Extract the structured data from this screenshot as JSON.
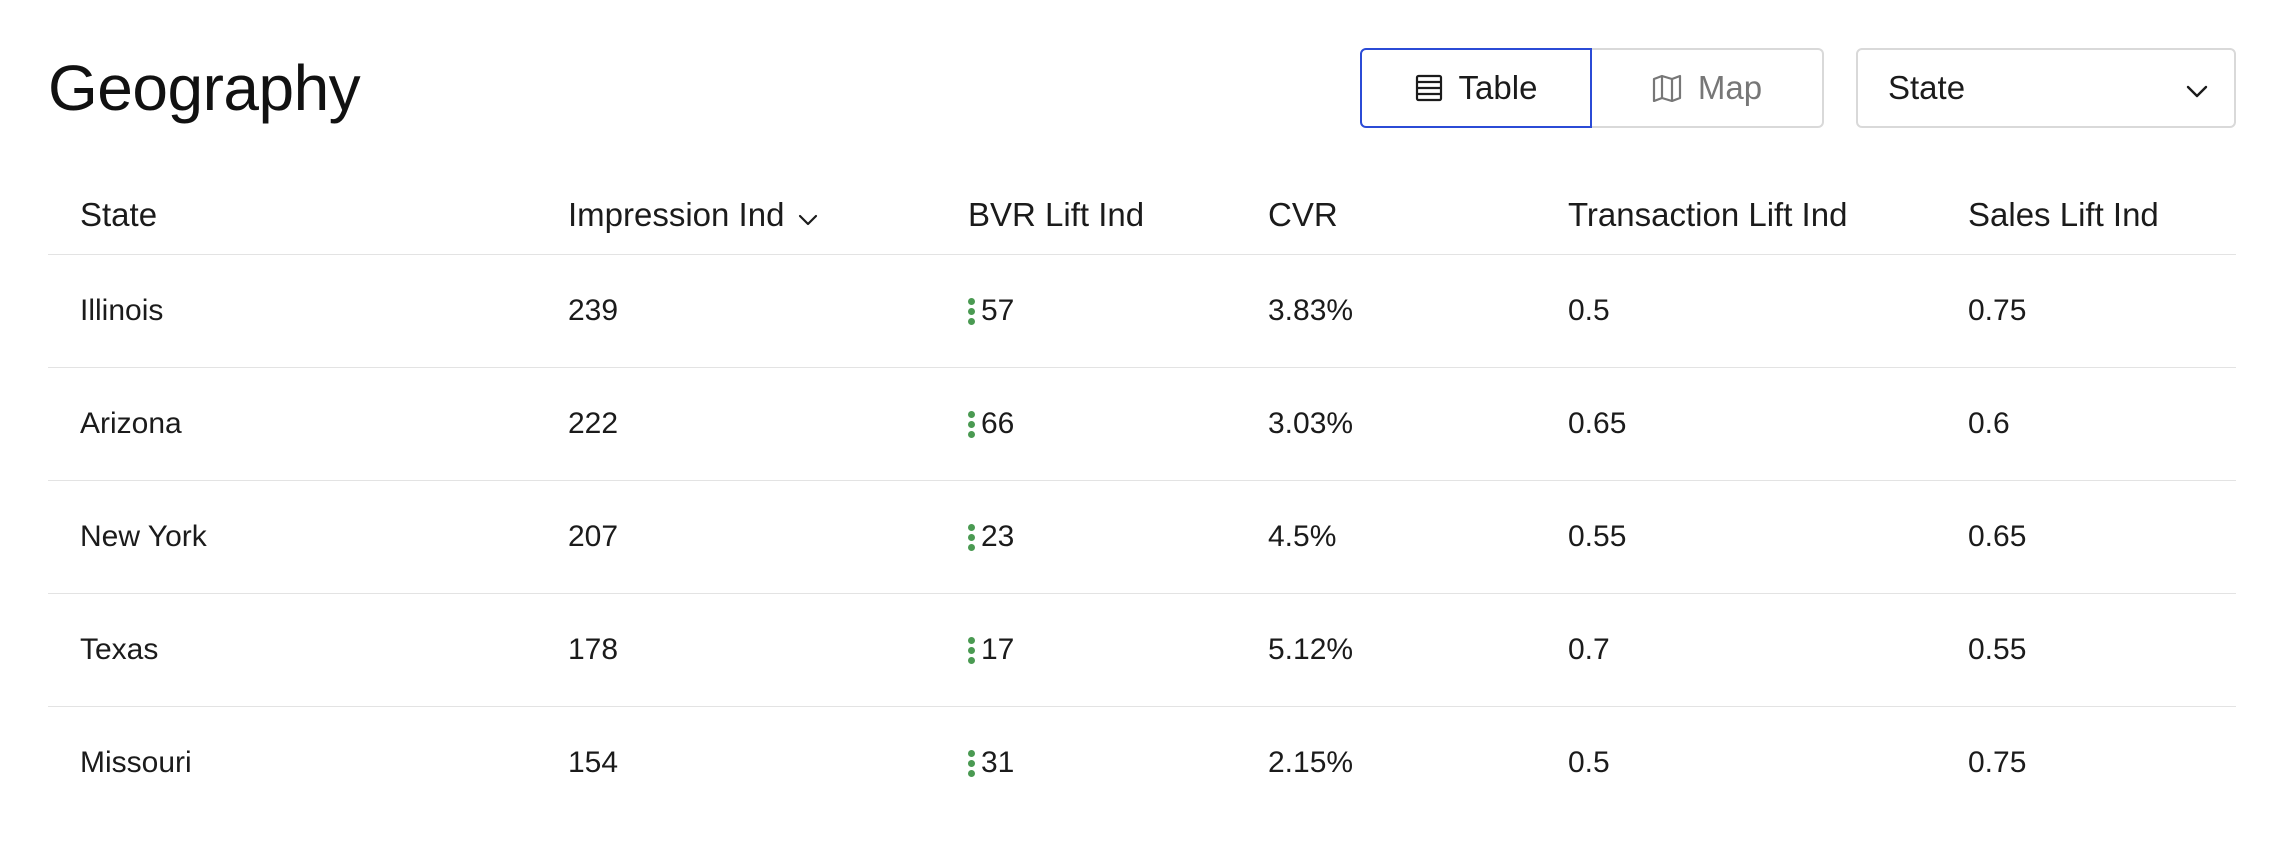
{
  "page": {
    "title": "Geography"
  },
  "view_toggle": {
    "table_label": "Table",
    "map_label": "Map",
    "active": "Table"
  },
  "dimension_select": {
    "value": "State"
  },
  "colors": {
    "accent": "#2b4bd6",
    "indicator": "#4a9a52",
    "border": "#d9d9d9",
    "divider": "#e3e3e3"
  },
  "table": {
    "columns": [
      {
        "label": "State"
      },
      {
        "label": "Impression Ind",
        "sorted": "desc"
      },
      {
        "label": "BVR Lift Ind"
      },
      {
        "label": "CVR"
      },
      {
        "label": "Transaction Lift Ind"
      },
      {
        "label": "Sales Lift Ind"
      }
    ],
    "rows": [
      {
        "state": "Illinois",
        "impression_ind": "239",
        "bvr_lift_ind": "57",
        "cvr": "3.83%",
        "transaction_lift_ind": "0.5",
        "sales_lift_ind": "0.75"
      },
      {
        "state": "Arizona",
        "impression_ind": "222",
        "bvr_lift_ind": "66",
        "cvr": "3.03%",
        "transaction_lift_ind": "0.65",
        "sales_lift_ind": "0.6"
      },
      {
        "state": "New York",
        "impression_ind": "207",
        "bvr_lift_ind": "23",
        "cvr": "4.5%",
        "transaction_lift_ind": "0.55",
        "sales_lift_ind": "0.65"
      },
      {
        "state": "Texas",
        "impression_ind": "178",
        "bvr_lift_ind": "17",
        "cvr": "5.12%",
        "transaction_lift_ind": "0.7",
        "sales_lift_ind": "0.55"
      },
      {
        "state": "Missouri",
        "impression_ind": "154",
        "bvr_lift_ind": "31",
        "cvr": "2.15%",
        "transaction_lift_ind": "0.5",
        "sales_lift_ind": "0.75"
      }
    ]
  }
}
